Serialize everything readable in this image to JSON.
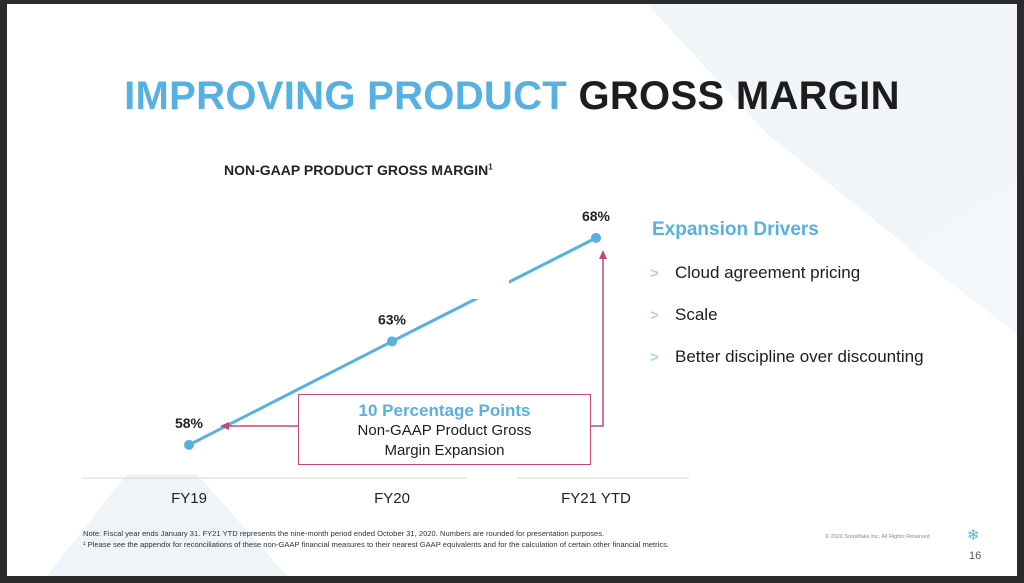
{
  "slide": {
    "title_accent": "IMPROVING PRODUCT",
    "title_rest": "GROSS MARGIN",
    "subtitle": "NON-GAAP PRODUCT GROSS MARGIN",
    "subtitle_sup": "1",
    "callout": {
      "headline": "10 Percentage Points",
      "line1": "Non-GAAP Product Gross",
      "line2": "Margin Expansion"
    },
    "drivers": {
      "title": "Expansion Drivers",
      "items": [
        "Cloud agreement pricing",
        "Scale",
        "Better discipline over discounting"
      ]
    },
    "footnote_1": "Note: Fiscal year ends January 31.  FY21 YTD represents the nine-month period ended October 31, 2020. Numbers are rounded for presentation purposes.",
    "footnote_2": "¹ Please see the appendix for reconciliations of these non-GAAP financial measures to their nearest GAAP equivalents and for the calculation of certain other financial metrics.",
    "copyright": "© 2020 Snowflake Inc. All Rights Reserved",
    "page_number": "16",
    "logo_icon": "snowflake-icon"
  },
  "colors": {
    "accent": "#56b1e2",
    "arrow": "#c3487a",
    "text": "#1d1d1d"
  },
  "chart_data": {
    "type": "line",
    "categories": [
      "FY19",
      "FY20",
      "FY21 YTD"
    ],
    "values": [
      58,
      63,
      68
    ],
    "data_labels": [
      "58%",
      "63%",
      "68%"
    ],
    "ylim": [
      55,
      70
    ]
  }
}
